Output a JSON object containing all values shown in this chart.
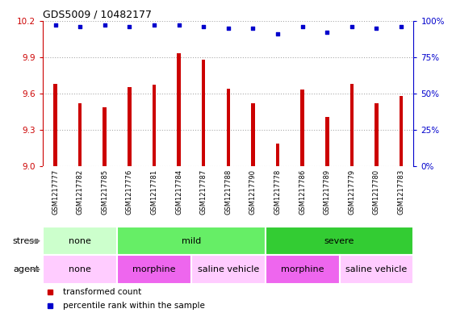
{
  "title": "GDS5009 / 10482177",
  "samples": [
    "GSM1217777",
    "GSM1217782",
    "GSM1217785",
    "GSM1217776",
    "GSM1217781",
    "GSM1217784",
    "GSM1217787",
    "GSM1217788",
    "GSM1217790",
    "GSM1217778",
    "GSM1217786",
    "GSM1217789",
    "GSM1217779",
    "GSM1217780",
    "GSM1217783"
  ],
  "transformed_counts": [
    9.68,
    9.52,
    9.49,
    9.65,
    9.67,
    9.93,
    9.88,
    9.64,
    9.52,
    9.19,
    9.63,
    9.41,
    9.68,
    9.52,
    9.58
  ],
  "percentile_ranks": [
    97,
    96,
    97,
    96,
    97,
    97,
    96,
    95,
    95,
    91,
    96,
    92,
    96,
    95,
    96
  ],
  "ylim_left": [
    9.0,
    10.2
  ],
  "ylim_right": [
    0,
    100
  ],
  "yticks_left": [
    9.0,
    9.3,
    9.6,
    9.9,
    10.2
  ],
  "yticks_right": [
    0,
    25,
    50,
    75,
    100
  ],
  "ytick_labels_right": [
    "0%",
    "25%",
    "50%",
    "75%",
    "100%"
  ],
  "bar_color": "#cc0000",
  "dot_color": "#0000cc",
  "bar_bottom": 9.0,
  "plot_bg": "#ffffff",
  "tick_area_bg": "#cccccc",
  "stress_groups": [
    {
      "label": "none",
      "start": 0,
      "end": 3,
      "color": "#ccffcc"
    },
    {
      "label": "mild",
      "start": 3,
      "end": 9,
      "color": "#66ee66"
    },
    {
      "label": "severe",
      "start": 9,
      "end": 15,
      "color": "#33cc33"
    }
  ],
  "agent_groups": [
    {
      "label": "none",
      "start": 0,
      "end": 3,
      "color": "#ffccff"
    },
    {
      "label": "morphine",
      "start": 3,
      "end": 6,
      "color": "#ee66ee"
    },
    {
      "label": "saline vehicle",
      "start": 6,
      "end": 9,
      "color": "#ffccff"
    },
    {
      "label": "morphine",
      "start": 9,
      "end": 12,
      "color": "#ee66ee"
    },
    {
      "label": "saline vehicle",
      "start": 12,
      "end": 15,
      "color": "#ffccff"
    }
  ],
  "legend_items": [
    {
      "label": "transformed count",
      "color": "#cc0000"
    },
    {
      "label": "percentile rank within the sample",
      "color": "#0000cc"
    }
  ]
}
